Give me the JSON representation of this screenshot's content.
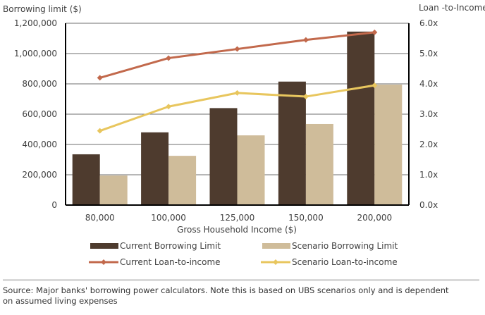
{
  "chart_data": {
    "type": "bar",
    "title": "",
    "xlabel": "Gross Household Income ($)",
    "ylabel": "Borrowing limit ($)",
    "y2label": "Loan -to-Income",
    "categories": [
      "80,000",
      "100,000",
      "125,000",
      "150,000",
      "200,000"
    ],
    "ylim": [
      0,
      1200000
    ],
    "y2lim": [
      0,
      6
    ],
    "yticks": [
      "0",
      "200,000",
      "400,000",
      "600,000",
      "800,000",
      "1,000,000",
      "1,200,000"
    ],
    "y2ticks": [
      "0.0x",
      "1.0x",
      "2.0x",
      "3.0x",
      "4.0x",
      "5.0x",
      "6.0x"
    ],
    "grid": true,
    "legend_position": "bottom",
    "series": [
      {
        "name": "Current Borrowing Limit",
        "kind": "bar",
        "axis": "left",
        "color": "#4e3b2e",
        "values": [
          335000,
          480000,
          640000,
          815000,
          1145000
        ]
      },
      {
        "name": "Scenario Borrowing Limit",
        "kind": "bar",
        "axis": "left",
        "color": "#cfbc9a",
        "values": [
          195000,
          325000,
          460000,
          535000,
          795000
        ]
      },
      {
        "name": "Current Loan-to-income",
        "kind": "line",
        "axis": "right",
        "color": "#c2694c",
        "values": [
          4.2,
          4.85,
          5.15,
          5.45,
          5.7
        ]
      },
      {
        "name": "Scenario Loan-to-income",
        "kind": "line",
        "axis": "right",
        "color": "#e8c65e",
        "values": [
          2.45,
          3.25,
          3.7,
          3.58,
          3.95
        ]
      }
    ]
  },
  "footer": {
    "source_line1": "Source:  Major banks' borrowing power calculators. Note this is based on UBS scenarios only and is dependent",
    "source_line2": "on assumed living expenses"
  }
}
